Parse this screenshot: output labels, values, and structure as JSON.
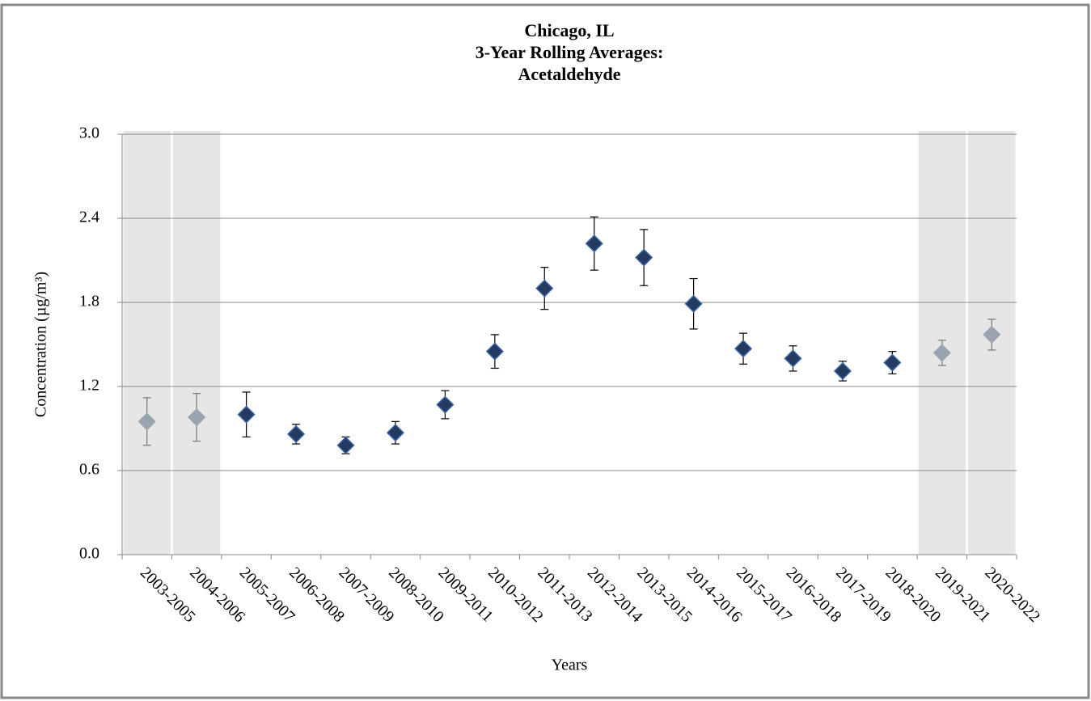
{
  "chart_data": {
    "type": "errorbar",
    "title": [
      "Chicago, IL",
      "3-Year Rolling Averages:",
      "Acetaldehyde"
    ],
    "xlabel": "Years",
    "ylabel": "Concentration (µg/m³)",
    "categories": [
      "2003-2005",
      "2004-2006",
      "2005-2007",
      "2006-2008",
      "2007-2009",
      "2008-2010",
      "2009-2011",
      "2010-2012",
      "2011-2013",
      "2012-2014",
      "2013-2015",
      "2014-2016",
      "2015-2017",
      "2016-2018",
      "2017-2019",
      "2018-2020",
      "2019-2021",
      "2020-2022"
    ],
    "values": [
      0.95,
      0.98,
      1.0,
      0.86,
      0.78,
      0.87,
      1.07,
      1.45,
      1.9,
      2.22,
      2.12,
      1.79,
      1.47,
      1.4,
      1.31,
      1.37,
      1.44,
      1.57
    ],
    "errors": [
      0.17,
      0.17,
      0.16,
      0.07,
      0.06,
      0.08,
      0.1,
      0.12,
      0.15,
      0.19,
      0.2,
      0.18,
      0.11,
      0.09,
      0.07,
      0.08,
      0.09,
      0.11
    ],
    "shaded": [
      true,
      true,
      false,
      false,
      false,
      false,
      false,
      false,
      false,
      false,
      false,
      false,
      false,
      false,
      false,
      false,
      true,
      true
    ],
    "color": "#243a5e",
    "shaded_color": "#9aa3b0",
    "ylim": [
      0,
      3.0
    ],
    "yticks": [
      {
        "value": 0,
        "label": "0.0"
      },
      0.6,
      1.2,
      1.8,
      2.4,
      {
        "value": 3,
        "label": "3.0"
      }
    ],
    "grid": true
  }
}
